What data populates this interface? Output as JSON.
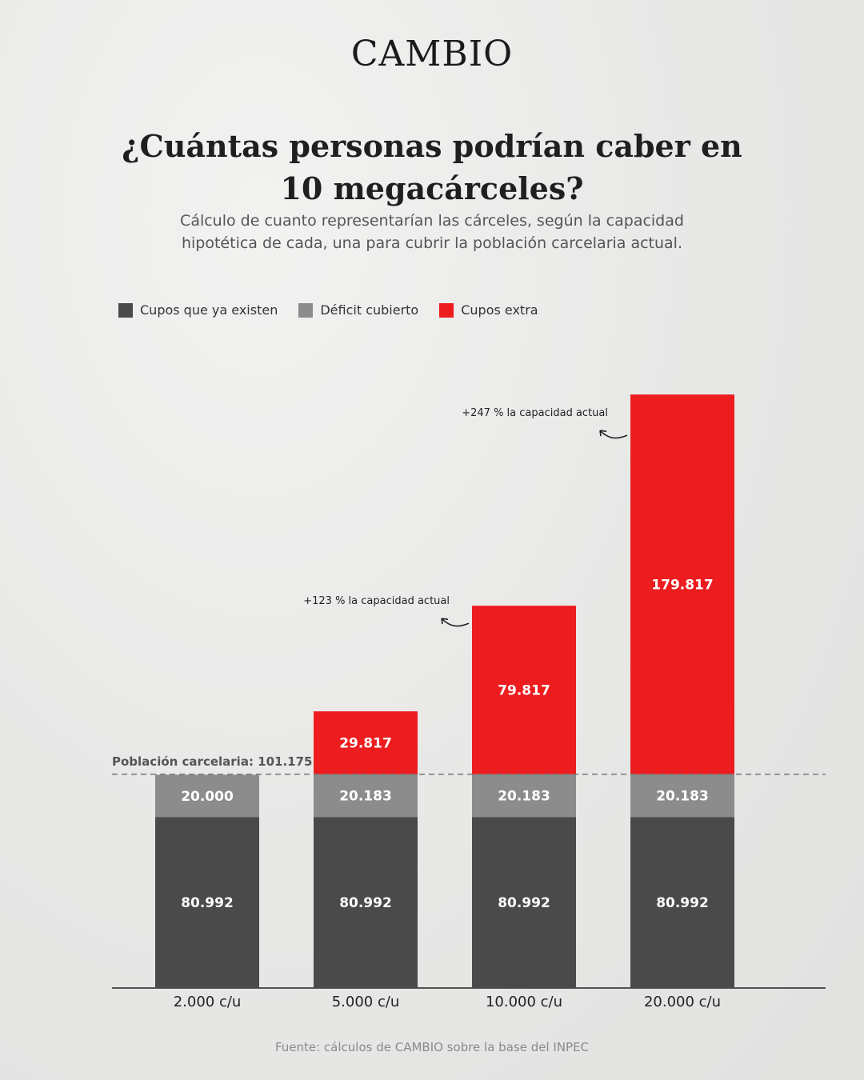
{
  "brand": "CAMBIO",
  "title_line1": "¿Cuántas personas podrían caber en",
  "title_line2": "10 megacárceles?",
  "subtitle": "Cálculo de cuanto representarían las cárceles, según la capacidad hipotética de cada, una para cubrir la población carcelaria actual.",
  "source": "Fuente: cálculos de CAMBIO sobre la base del INPEC",
  "chart_data": {
    "type": "bar",
    "stacked": true,
    "categories": [
      "2.000 c/u",
      "5.000 c/u",
      "10.000 c/u",
      "20.000 c/u"
    ],
    "series": [
      {
        "name": "Cupos que ya existen",
        "color": "#4a4a4a",
        "values": [
          80992,
          80992,
          80992,
          80992
        ],
        "labels": [
          "80.992",
          "80.992",
          "80.992",
          "80.992"
        ]
      },
      {
        "name": "Déficit cubierto",
        "color": "#8c8c8c",
        "values": [
          20000,
          20183,
          20183,
          20183
        ],
        "labels": [
          "20.000",
          "20.183",
          "20.183",
          "20.183"
        ]
      },
      {
        "name": "Cupos extra",
        "color": "#ec1c1f",
        "values": [
          0,
          29817,
          79817,
          179817
        ],
        "labels": [
          "",
          "29.817",
          "79.817",
          "179.817"
        ]
      }
    ],
    "reference_line": {
      "label": "Población carcelaria: 101.175",
      "value": 101175
    },
    "annotations": [
      {
        "category_index": 2,
        "text": "+123 % la capacidad actual"
      },
      {
        "category_index": 3,
        "text": "+247 % la capacidad actual"
      }
    ],
    "ylim": [
      0,
      281000
    ],
    "grid": false,
    "legend_position": "top-left"
  }
}
